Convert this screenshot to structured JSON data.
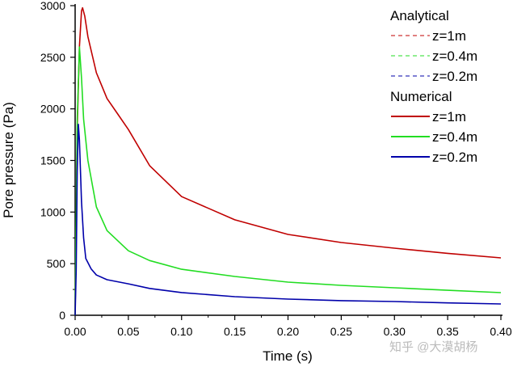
{
  "chart_data": {
    "type": "line",
    "xlabel": "Time (s)",
    "ylabel": "Pore pressure (Pa)",
    "xlim": [
      0,
      0.4
    ],
    "ylim": [
      0,
      3000
    ],
    "xticks": [
      "0.00",
      "0.05",
      "0.10",
      "0.15",
      "0.20",
      "0.25",
      "0.30",
      "0.35",
      "0.40"
    ],
    "yticks": [
      "0",
      "500",
      "1000",
      "1500",
      "2000",
      "2500",
      "3000"
    ],
    "grid": false,
    "legend_placement": "top-right",
    "legend": {
      "groups": [
        {
          "title": "Analytical",
          "style": "dashed",
          "entries": [
            "z=1m",
            "z=0.4m",
            "z=0.2m"
          ]
        },
        {
          "title": "Numerical",
          "style": "solid",
          "entries": [
            "z=1m",
            "z=0.4m",
            "z=0.2m"
          ]
        }
      ]
    },
    "series": [
      {
        "name": "z=1m",
        "color": "#c00000",
        "points": [
          [
            0,
            0
          ],
          [
            0.002,
            1800
          ],
          [
            0.004,
            2600
          ],
          [
            0.006,
            2950
          ],
          [
            0.007,
            2980
          ],
          [
            0.009,
            2900
          ],
          [
            0.012,
            2700
          ],
          [
            0.02,
            2350
          ],
          [
            0.03,
            2100
          ],
          [
            0.04,
            1950
          ],
          [
            0.05,
            1800
          ],
          [
            0.07,
            1450
          ],
          [
            0.1,
            1150
          ],
          [
            0.15,
            925
          ],
          [
            0.2,
            783
          ],
          [
            0.25,
            705
          ],
          [
            0.3,
            650
          ],
          [
            0.35,
            600
          ],
          [
            0.4,
            556
          ]
        ]
      },
      {
        "name": "z=0.4m",
        "color": "#22dd22",
        "points": [
          [
            0,
            0
          ],
          [
            0.002,
            1900
          ],
          [
            0.004,
            2600
          ],
          [
            0.006,
            2300
          ],
          [
            0.008,
            1900
          ],
          [
            0.012,
            1500
          ],
          [
            0.02,
            1050
          ],
          [
            0.03,
            820
          ],
          [
            0.05,
            625
          ],
          [
            0.07,
            530
          ],
          [
            0.1,
            446
          ],
          [
            0.15,
            376
          ],
          [
            0.2,
            321
          ],
          [
            0.25,
            290
          ],
          [
            0.3,
            266
          ],
          [
            0.35,
            242
          ],
          [
            0.4,
            219
          ]
        ]
      },
      {
        "name": "z=0.2m",
        "color": "#0000aa",
        "points": [
          [
            0,
            0
          ],
          [
            0.001,
            430
          ],
          [
            0.002,
            1400
          ],
          [
            0.003,
            1850
          ],
          [
            0.004,
            1700
          ],
          [
            0.006,
            1100
          ],
          [
            0.008,
            750
          ],
          [
            0.01,
            550
          ],
          [
            0.015,
            450
          ],
          [
            0.02,
            390
          ],
          [
            0.03,
            345
          ],
          [
            0.05,
            305
          ],
          [
            0.07,
            260
          ],
          [
            0.1,
            220
          ],
          [
            0.15,
            180
          ],
          [
            0.2,
            157
          ],
          [
            0.25,
            142
          ],
          [
            0.3,
            133
          ],
          [
            0.35,
            120
          ],
          [
            0.4,
            110
          ]
        ]
      }
    ]
  },
  "watermark": "知乎 @大漠胡杨"
}
